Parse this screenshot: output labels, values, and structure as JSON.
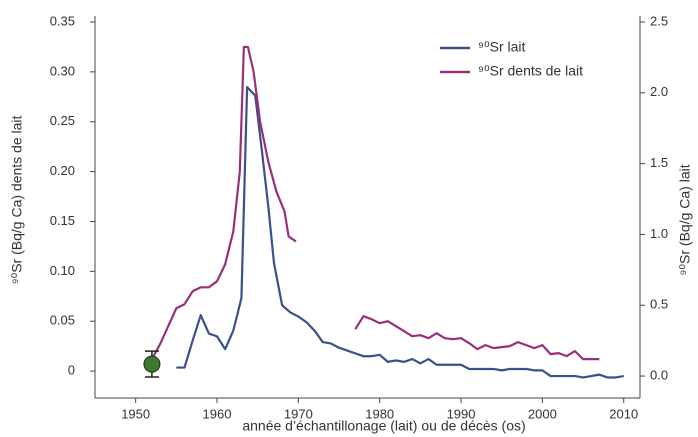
{
  "chart_data": {
    "type": "line",
    "xlabel": "année d’échantillonage (lait) ou de décès (os)",
    "ylabel": "⁹⁰Sr (Bq/g Ca) dents de lait",
    "y2label": "⁹⁰Sr (Bq/g Ca) lait",
    "xlim": [
      1945,
      2012
    ],
    "xticks": [
      1950,
      1960,
      1970,
      1980,
      1990,
      2000,
      2010
    ],
    "ylim": [
      -0.027,
      0.35
    ],
    "yticks": [
      0,
      0.05,
      {
        "value": 0.1,
        "label": "0.10"
      },
      0.15,
      {
        "value": 0.2,
        "label": "0.20"
      },
      0.25,
      {
        "value": 0.3,
        "label": "0.30"
      },
      0.35
    ],
    "y2lim": [
      -0.155,
      2.5
    ],
    "y2ticks": [
      {
        "value": 0,
        "label": "0.0"
      },
      0.5,
      {
        "value": 1,
        "label": "1.0"
      },
      1.5,
      {
        "value": 2,
        "label": "2.0"
      },
      2.5
    ],
    "legend": "upper right",
    "series": [
      {
        "name": "⁹⁰Sr lait",
        "color": "#3b4f8c",
        "axis": "y2",
        "x": [
          1955,
          1956,
          1957,
          1958,
          1959,
          1960,
          1961,
          1962,
          1963,
          1963.7,
          1964.7,
          1965.5,
          1966.3,
          1967,
          1968,
          1969,
          1970,
          1971,
          1972,
          1973,
          1974,
          1975,
          1976,
          1977,
          1978,
          1979,
          1980,
          1981,
          1982,
          1983,
          1984,
          1985,
          1986,
          1987,
          1988,
          1989,
          1990,
          1991,
          1992,
          1993,
          1994,
          1995,
          1996,
          1997,
          1998,
          1999,
          2000,
          2001,
          2002,
          2003,
          2004,
          2005,
          2006,
          2007,
          2008,
          2009,
          2010
        ],
        "values": [
          0.06,
          0.06,
          0.25,
          0.43,
          0.3,
          0.28,
          0.19,
          0.32,
          0.55,
          2.04,
          1.98,
          1.6,
          1.2,
          0.8,
          0.5,
          0.45,
          0.42,
          0.38,
          0.32,
          0.24,
          0.23,
          0.2,
          0.18,
          0.16,
          0.14,
          0.14,
          0.15,
          0.1,
          0.11,
          0.1,
          0.12,
          0.09,
          0.12,
          0.08,
          0.08,
          0.08,
          0.08,
          0.05,
          0.05,
          0.05,
          0.05,
          0.04,
          0.05,
          0.05,
          0.05,
          0.04,
          0.04,
          0.0,
          0.0,
          0.0,
          0.0,
          -0.01,
          0.0,
          0.01,
          -0.01,
          -0.01,
          0.0
        ]
      },
      {
        "name": "⁹⁰Sr dents de lait",
        "color": "#9b2e7a",
        "x": [
          1952,
          1953,
          1954,
          1955,
          1956,
          1957,
          1958,
          1959,
          1960,
          1961,
          1962,
          1962.8,
          1963.3,
          1963.8,
          1964.5,
          1965.3,
          1966.3,
          1967.3,
          1968.3,
          1968.8,
          1969.7,
          1973,
          1977,
          1978,
          1979,
          1980,
          1981,
          1982,
          1983,
          1984,
          1985,
          1986,
          1987,
          1988,
          1989,
          1990,
          1991,
          1992,
          1993,
          1994,
          1995,
          1996,
          1997,
          1998,
          1999,
          2000,
          2001,
          2002,
          2003,
          2004,
          2005,
          2006,
          2007
        ],
        "values": [
          0.012,
          0.027,
          0.045,
          0.063,
          0.067,
          0.08,
          0.084,
          0.084,
          0.09,
          0.107,
          0.14,
          0.2,
          0.325,
          0.325,
          0.3,
          0.25,
          0.21,
          0.18,
          0.16,
          0.135,
          0.13,
          null,
          0.042,
          0.055,
          0.052,
          0.048,
          0.05,
          0.045,
          0.04,
          0.035,
          0.036,
          0.033,
          0.038,
          0.033,
          0.032,
          0.033,
          0.028,
          0.022,
          0.026,
          0.023,
          0.024,
          0.025,
          0.029,
          0.026,
          0.023,
          0.026,
          0.017,
          0.018,
          0.015,
          0.02,
          0.012,
          0.012,
          0.012
        ]
      }
    ],
    "marker": {
      "x": 1952,
      "value": 0.007,
      "error": 0.013,
      "color": "#3d7a2a"
    }
  }
}
